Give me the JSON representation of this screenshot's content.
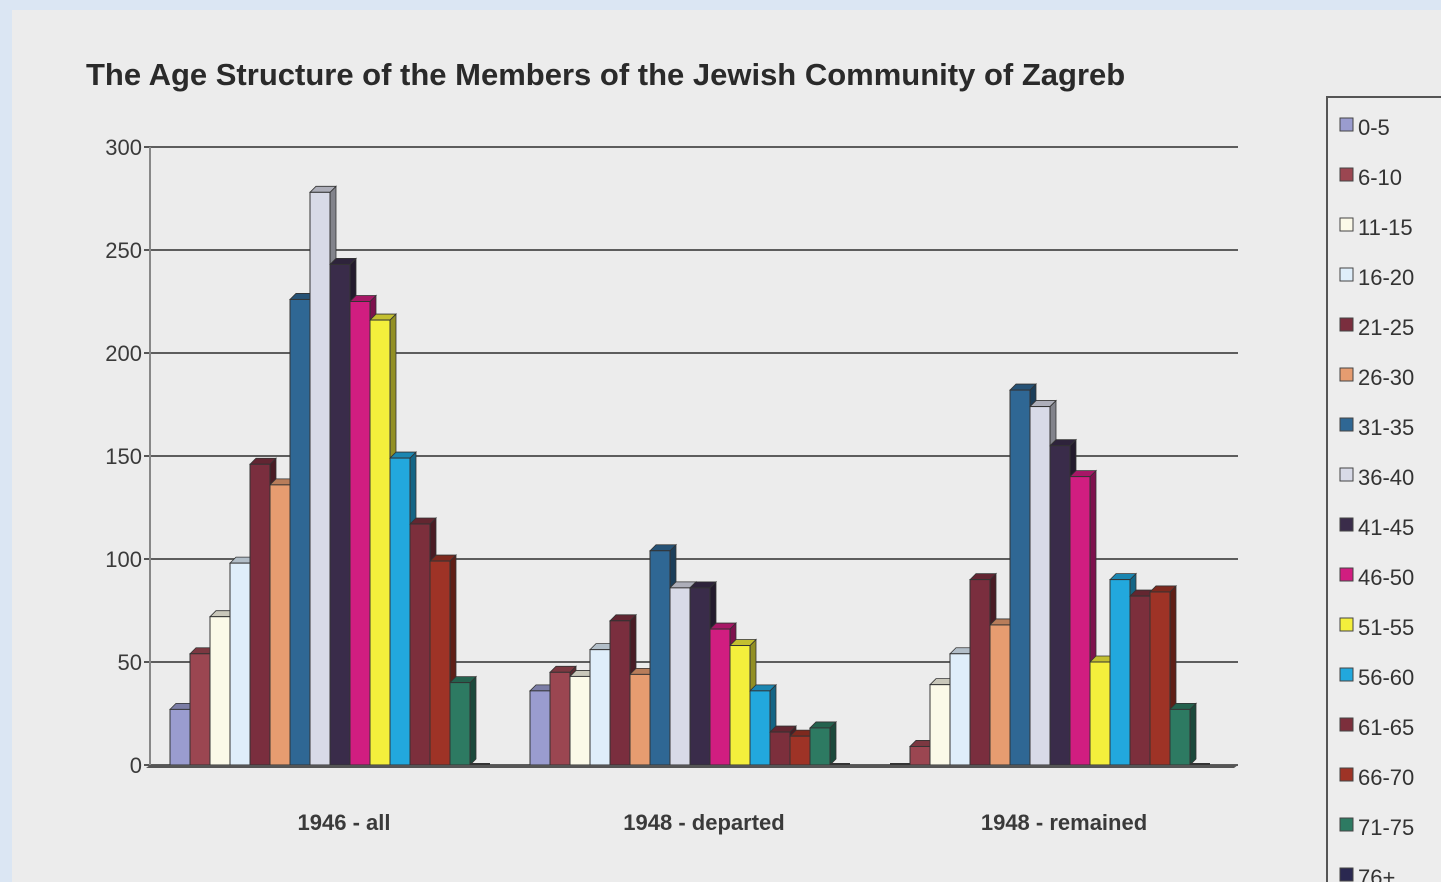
{
  "chart_data": {
    "type": "bar",
    "title": "The Age Structure of the Members of the Jewish Community of Zagreb",
    "xlabel": "",
    "ylabel": "",
    "ylim": [
      0,
      300
    ],
    "yticks": [
      0,
      50,
      100,
      150,
      200,
      250,
      300
    ],
    "grid": true,
    "legend_position": "right",
    "categories": [
      "1946 - all",
      "1948 - departed",
      "1948 - remained"
    ],
    "series": [
      {
        "name": "0-5",
        "color": "#9a9ccf",
        "values": [
          27,
          36,
          0
        ]
      },
      {
        "name": "6-10",
        "color": "#9b4651",
        "values": [
          54,
          45,
          9
        ]
      },
      {
        "name": "11-15",
        "color": "#fbf9e8",
        "values": [
          72,
          43,
          39
        ]
      },
      {
        "name": "16-20",
        "color": "#dfeefa",
        "values": [
          98,
          56,
          54
        ]
      },
      {
        "name": "21-25",
        "color": "#7a2e3e",
        "values": [
          146,
          70,
          90
        ]
      },
      {
        "name": "26-30",
        "color": "#e69c70",
        "values": [
          136,
          44,
          68
        ]
      },
      {
        "name": "31-35",
        "color": "#2f6794",
        "values": [
          226,
          104,
          182
        ]
      },
      {
        "name": "36-40",
        "color": "#d8dae7",
        "values": [
          278,
          86,
          174
        ]
      },
      {
        "name": "41-45",
        "color": "#3a2c4a",
        "values": [
          243,
          86,
          155
        ]
      },
      {
        "name": "46-50",
        "color": "#d11d80",
        "values": [
          225,
          66,
          140
        ]
      },
      {
        "name": "51-55",
        "color": "#f4ef3c",
        "values": [
          216,
          58,
          50
        ]
      },
      {
        "name": "56-60",
        "color": "#22a8dd",
        "values": [
          149,
          36,
          90
        ]
      },
      {
        "name": "61-65",
        "color": "#7c2f3c",
        "values": [
          117,
          16,
          82
        ]
      },
      {
        "name": "66-70",
        "color": "#9e3326",
        "values": [
          99,
          14,
          84
        ]
      },
      {
        "name": "71-75",
        "color": "#2d7a62",
        "values": [
          40,
          18,
          27
        ]
      },
      {
        "name": "76+",
        "color": "#2a2850",
        "values": [
          0,
          0,
          0
        ]
      }
    ]
  }
}
